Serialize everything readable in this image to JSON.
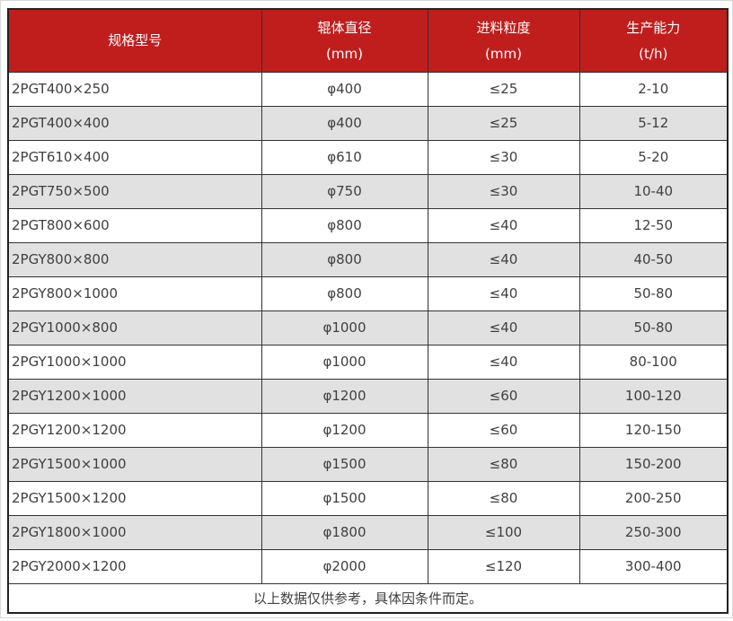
{
  "table": {
    "columns": [
      {
        "label": "规格型号",
        "unit": ""
      },
      {
        "label": "辊体直径",
        "unit": "(mm)"
      },
      {
        "label": "进料粒度",
        "unit": "(mm)"
      },
      {
        "label": "生产能力",
        "unit": "(t/h)"
      }
    ],
    "rows": [
      [
        "2PGT400×250",
        "φ400",
        "≤25",
        "2-10"
      ],
      [
        "2PGT400×400",
        "φ400",
        "≤25",
        "5-12"
      ],
      [
        "2PGT610×400",
        "φ610",
        "≤30",
        "5-20"
      ],
      [
        "2PGT750×500",
        "φ750",
        "≤30",
        "10-40"
      ],
      [
        "2PGT800×600",
        "φ800",
        "≤40",
        "12-50"
      ],
      [
        "2PGY800×800",
        "φ800",
        "≤40",
        "40-50"
      ],
      [
        "2PGY800×1000",
        "φ800",
        "≤40",
        "50-80"
      ],
      [
        "2PGY1000×800",
        "φ1000",
        "≤40",
        "50-80"
      ],
      [
        "2PGY1000×1000",
        "φ1000",
        "≤40",
        "80-100"
      ],
      [
        "2PGY1200×1000",
        "φ1200",
        "≤60",
        "100-120"
      ],
      [
        "2PGY1200×1200",
        "φ1200",
        "≤60",
        "120-150"
      ],
      [
        "2PGY1500×1000",
        "φ1500",
        "≤80",
        "150-200"
      ],
      [
        "2PGY1500×1200",
        "φ1500",
        "≤80",
        "200-250"
      ],
      [
        "2PGY1800×1000",
        "φ1800",
        "≤100",
        "250-300"
      ],
      [
        "2PGY2000×1200",
        "φ2000",
        "≤120",
        "300-400"
      ]
    ],
    "footer_note": "以上数据仅供参考，具体因条件而定。",
    "colors": {
      "header_bg": "#c01d1d",
      "header_text": "#ffffff",
      "stripe_bg": "#e1e1e1",
      "row_bg": "#ffffff",
      "grid_border": "#333333",
      "outer_border": "#222222",
      "body_text": "#404040"
    }
  },
  "chart_data": {
    "type": "table",
    "title": "",
    "columns": [
      "规格型号",
      "辊体直径 (mm)",
      "进料粒度 (mm)",
      "生产能力 (t/h)"
    ],
    "rows": [
      [
        "2PGT400×250",
        "φ400",
        "≤25",
        "2-10"
      ],
      [
        "2PGT400×400",
        "φ400",
        "≤25",
        "5-12"
      ],
      [
        "2PGT610×400",
        "φ610",
        "≤30",
        "5-20"
      ],
      [
        "2PGT750×500",
        "φ750",
        "≤30",
        "10-40"
      ],
      [
        "2PGT800×600",
        "φ800",
        "≤40",
        "12-50"
      ],
      [
        "2PGY800×800",
        "φ800",
        "≤40",
        "40-50"
      ],
      [
        "2PGY800×1000",
        "φ800",
        "≤40",
        "50-80"
      ],
      [
        "2PGY1000×800",
        "φ1000",
        "≤40",
        "50-80"
      ],
      [
        "2PGY1000×1000",
        "φ1000",
        "≤40",
        "80-100"
      ],
      [
        "2PGY1200×1000",
        "φ1200",
        "≤60",
        "100-120"
      ],
      [
        "2PGY1200×1200",
        "φ1200",
        "≤60",
        "120-150"
      ],
      [
        "2PGY1500×1000",
        "φ1500",
        "≤80",
        "150-200"
      ],
      [
        "2PGY1500×1200",
        "φ1500",
        "≤80",
        "200-250"
      ],
      [
        "2PGY1800×1000",
        "φ1800",
        "≤100",
        "250-300"
      ],
      [
        "2PGY2000×1200",
        "φ2000",
        "≤120",
        "300-400"
      ]
    ],
    "annotations": [
      "以上数据仅供参考，具体因条件而定。"
    ]
  }
}
